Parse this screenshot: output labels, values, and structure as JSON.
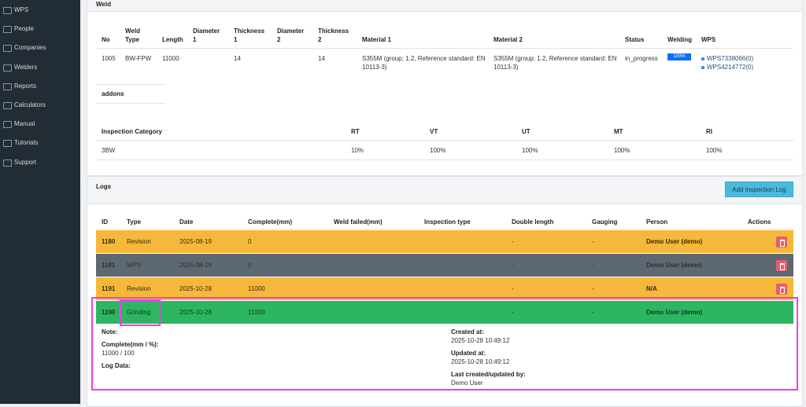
{
  "sidebar": {
    "items": [
      "WPS",
      "People",
      "Companies",
      "Welders",
      "Reports",
      "Calculators",
      "Manual",
      "Tutorials",
      "Support"
    ]
  },
  "weld": {
    "title": "Weld",
    "headers": [
      "No",
      "Weld Type",
      "Length",
      "Diameter 1",
      "Thickness 1",
      "Diameter 2",
      "Thickness 2",
      "Material 1",
      "Material 2",
      "Status",
      "Welding",
      "WPS"
    ],
    "row": {
      "no": "1005",
      "weld_type": "BW-FPW",
      "length": "11000",
      "thickness_1": "14",
      "thickness_2": "14",
      "material_1": "S355M (group: 1.2, Reference standard: EN 10113-3)",
      "material_2": "S355M (group: 1.2, Reference standard: EN 10113-3)",
      "status": "in_progress",
      "welding": "100%",
      "wps": [
        "WPS7338066(0)",
        "WPS4214772(0)"
      ]
    },
    "addons": "addons"
  },
  "inspection": {
    "headers": [
      "Inspection Category",
      "RT",
      "VT",
      "UT",
      "MT",
      "RI"
    ],
    "row": [
      "3BW",
      "10%",
      "100%",
      "100%",
      "100%",
      "100%"
    ]
  },
  "logs": {
    "title": "Logs",
    "button": "Add Inspection Log",
    "headers": [
      "ID",
      "Type",
      "Date",
      "Complete(mm)",
      "Weld failed(mm)",
      "Inspection type",
      "Double length",
      "Gauging",
      "Person",
      "Actions"
    ],
    "rows": [
      {
        "id": "1180",
        "type": "Revision",
        "date": "2025-08-19",
        "complete": "0",
        "double_length": "-",
        "gauging": "-",
        "person": "Demo User (demo)"
      },
      {
        "id": "1181",
        "type": "WPS",
        "date": "2025-08-19",
        "complete": "0",
        "double_length": "-",
        "gauging": "-",
        "person": "Demo User (demo)"
      },
      {
        "id": "1191",
        "type": "Revision",
        "date": "2025-10-28",
        "complete": "11000",
        "double_length": "-",
        "gauging": "-",
        "person": "N/A"
      },
      {
        "id": "1190",
        "type": "Grinding",
        "date": "2025-10-28",
        "complete": "11000",
        "double_length": "-",
        "gauging": "-",
        "person": "Demo User (demo)"
      }
    ],
    "detail": {
      "note": "Note:",
      "complete_label": "Complete(mm / %):",
      "complete_value": "11000 / 100",
      "log_data": "Log Data:",
      "created_label": "Created at:",
      "created_value": "2025-10-28 10:49:12",
      "updated_label": "Updated at:",
      "updated_value": "2025-10-28 10:49:12",
      "by_label": "Last created/updated by:",
      "by_value": "Demo User"
    }
  }
}
